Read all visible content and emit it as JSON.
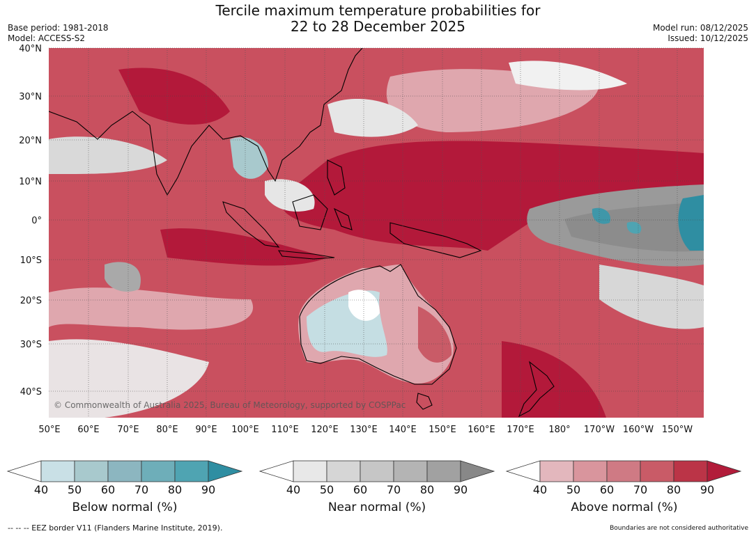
{
  "title": {
    "line1": "Tercile maximum temperature probabilities for",
    "line2": "22 to 28 December 2025"
  },
  "meta_left": {
    "base_period": "Base period: 1981-2018",
    "model": "Model: ACCESS-S2"
  },
  "meta_right": {
    "model_run": "Model run: 08/12/2025",
    "issued": "Issued: 10/12/2025"
  },
  "map": {
    "lat_labels": [
      "40°N",
      "30°N",
      "20°N",
      "10°N",
      "0°",
      "10°S",
      "20°S",
      "30°S",
      "40°S"
    ],
    "lon_labels": [
      "50°E",
      "60°E",
      "70°E",
      "80°E",
      "90°E",
      "100°E",
      "110°E",
      "120°E",
      "130°E",
      "140°E",
      "150°E",
      "160°E",
      "170°E",
      "180°",
      "170°W",
      "160°W",
      "150°W"
    ],
    "copyright": "© Commonwealth of Australia 2025, Bureau of Meteorology, supported by COSPPac"
  },
  "legends": [
    {
      "name": "below",
      "title": "Below normal (%)",
      "ticks": [
        "40",
        "50",
        "60",
        "70",
        "80",
        "90"
      ],
      "colors": [
        "#c9e0e6",
        "#a8c9cd",
        "#8cb6c0",
        "#6eaeb9",
        "#4fa4b2",
        "#2f8ea2"
      ]
    },
    {
      "name": "near",
      "title": "Near normal (%)",
      "ticks": [
        "40",
        "50",
        "60",
        "70",
        "80",
        "90"
      ],
      "colors": [
        "#e8e8e8",
        "#d6d6d6",
        "#c6c6c6",
        "#b4b4b4",
        "#a1a1a1",
        "#888888"
      ]
    },
    {
      "name": "above",
      "title": "Above normal (%)",
      "ticks": [
        "40",
        "50",
        "60",
        "70",
        "80",
        "90"
      ],
      "colors": [
        "#e3b7bd",
        "#d9959d",
        "#cf7a84",
        "#c95b67",
        "#bb3447",
        "#b21c3a"
      ]
    }
  ],
  "footer": {
    "eez": "--  --  -- EEZ border V11 (Flanders Marine Institute, 2019).",
    "note": "Boundaries are not considered authoritative"
  },
  "colors": {
    "deep_red": "#b3193a",
    "red": "#c33d52",
    "mid_red": "#d26e7a",
    "light_red": "#dfa7ae",
    "pale_red": "#ebccd0",
    "grey": "#8f8f8f",
    "light_grey": "#d9d9d9",
    "teal": "#2f8ea2",
    "light_teal": "#c5dee3"
  }
}
